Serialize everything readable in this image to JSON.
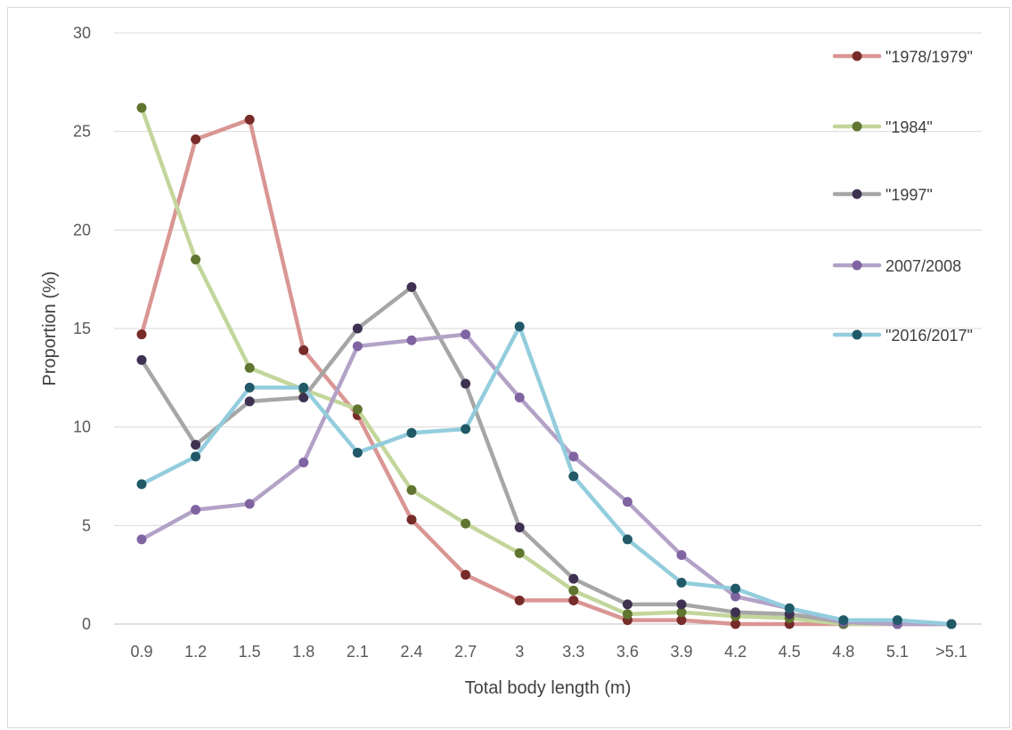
{
  "chart_data": {
    "type": "line",
    "title": "",
    "xlabel": "Total body length (m)",
    "ylabel": "Proportion (%)",
    "categories": [
      "0.9",
      "1.2",
      "1.5",
      "1.8",
      "2.1",
      "2.4",
      "2.7",
      "3",
      "3.3",
      "3.6",
      "3.9",
      "4.2",
      "4.5",
      "4.8",
      "5.1",
      ">5.1"
    ],
    "ylim": [
      0,
      30
    ],
    "yticks": [
      "0",
      "5",
      "10",
      "15",
      "20",
      "25",
      "30"
    ],
    "grid": true,
    "legend_position": "right",
    "series": [
      {
        "name": "\"1978/1979\"",
        "line_color": "#d99694",
        "marker_color": "#772c2a",
        "values": [
          14.7,
          24.6,
          25.6,
          13.9,
          10.6,
          5.3,
          2.5,
          1.2,
          1.2,
          0.2,
          0.2,
          0.0,
          0.0,
          0.0,
          0.0,
          0.0
        ]
      },
      {
        "name": "\"1984\"",
        "line_color": "#c3d69b",
        "marker_color": "#5f7530",
        "values": [
          26.2,
          18.5,
          13.0,
          11.9,
          10.9,
          6.8,
          5.1,
          3.6,
          1.7,
          0.5,
          0.6,
          0.4,
          0.3,
          0.0,
          0.0,
          0.0
        ]
      },
      {
        "name": "\"1997\"",
        "line_color": "#a6a6a6",
        "marker_color": "#3f3151",
        "values": [
          13.4,
          9.1,
          11.3,
          11.5,
          15.0,
          17.1,
          12.2,
          4.9,
          2.3,
          1.0,
          1.0,
          0.6,
          0.5,
          0.1,
          0.0,
          0.0
        ]
      },
      {
        "name": "2007/2008",
        "line_color": "#b3a2c7",
        "marker_color": "#8064a2",
        "values": [
          4.3,
          5.8,
          6.1,
          8.2,
          14.1,
          14.4,
          14.7,
          11.5,
          8.5,
          6.2,
          3.5,
          1.4,
          0.8,
          0.1,
          0.0,
          0.0
        ]
      },
      {
        "name": "\"2016/2017\"",
        "line_color": "#93cddd",
        "marker_color": "#215968",
        "values": [
          7.1,
          8.5,
          12.0,
          12.0,
          8.7,
          9.7,
          9.9,
          15.1,
          7.5,
          4.3,
          2.1,
          1.8,
          0.8,
          0.2,
          0.2,
          0.0
        ]
      }
    ]
  }
}
